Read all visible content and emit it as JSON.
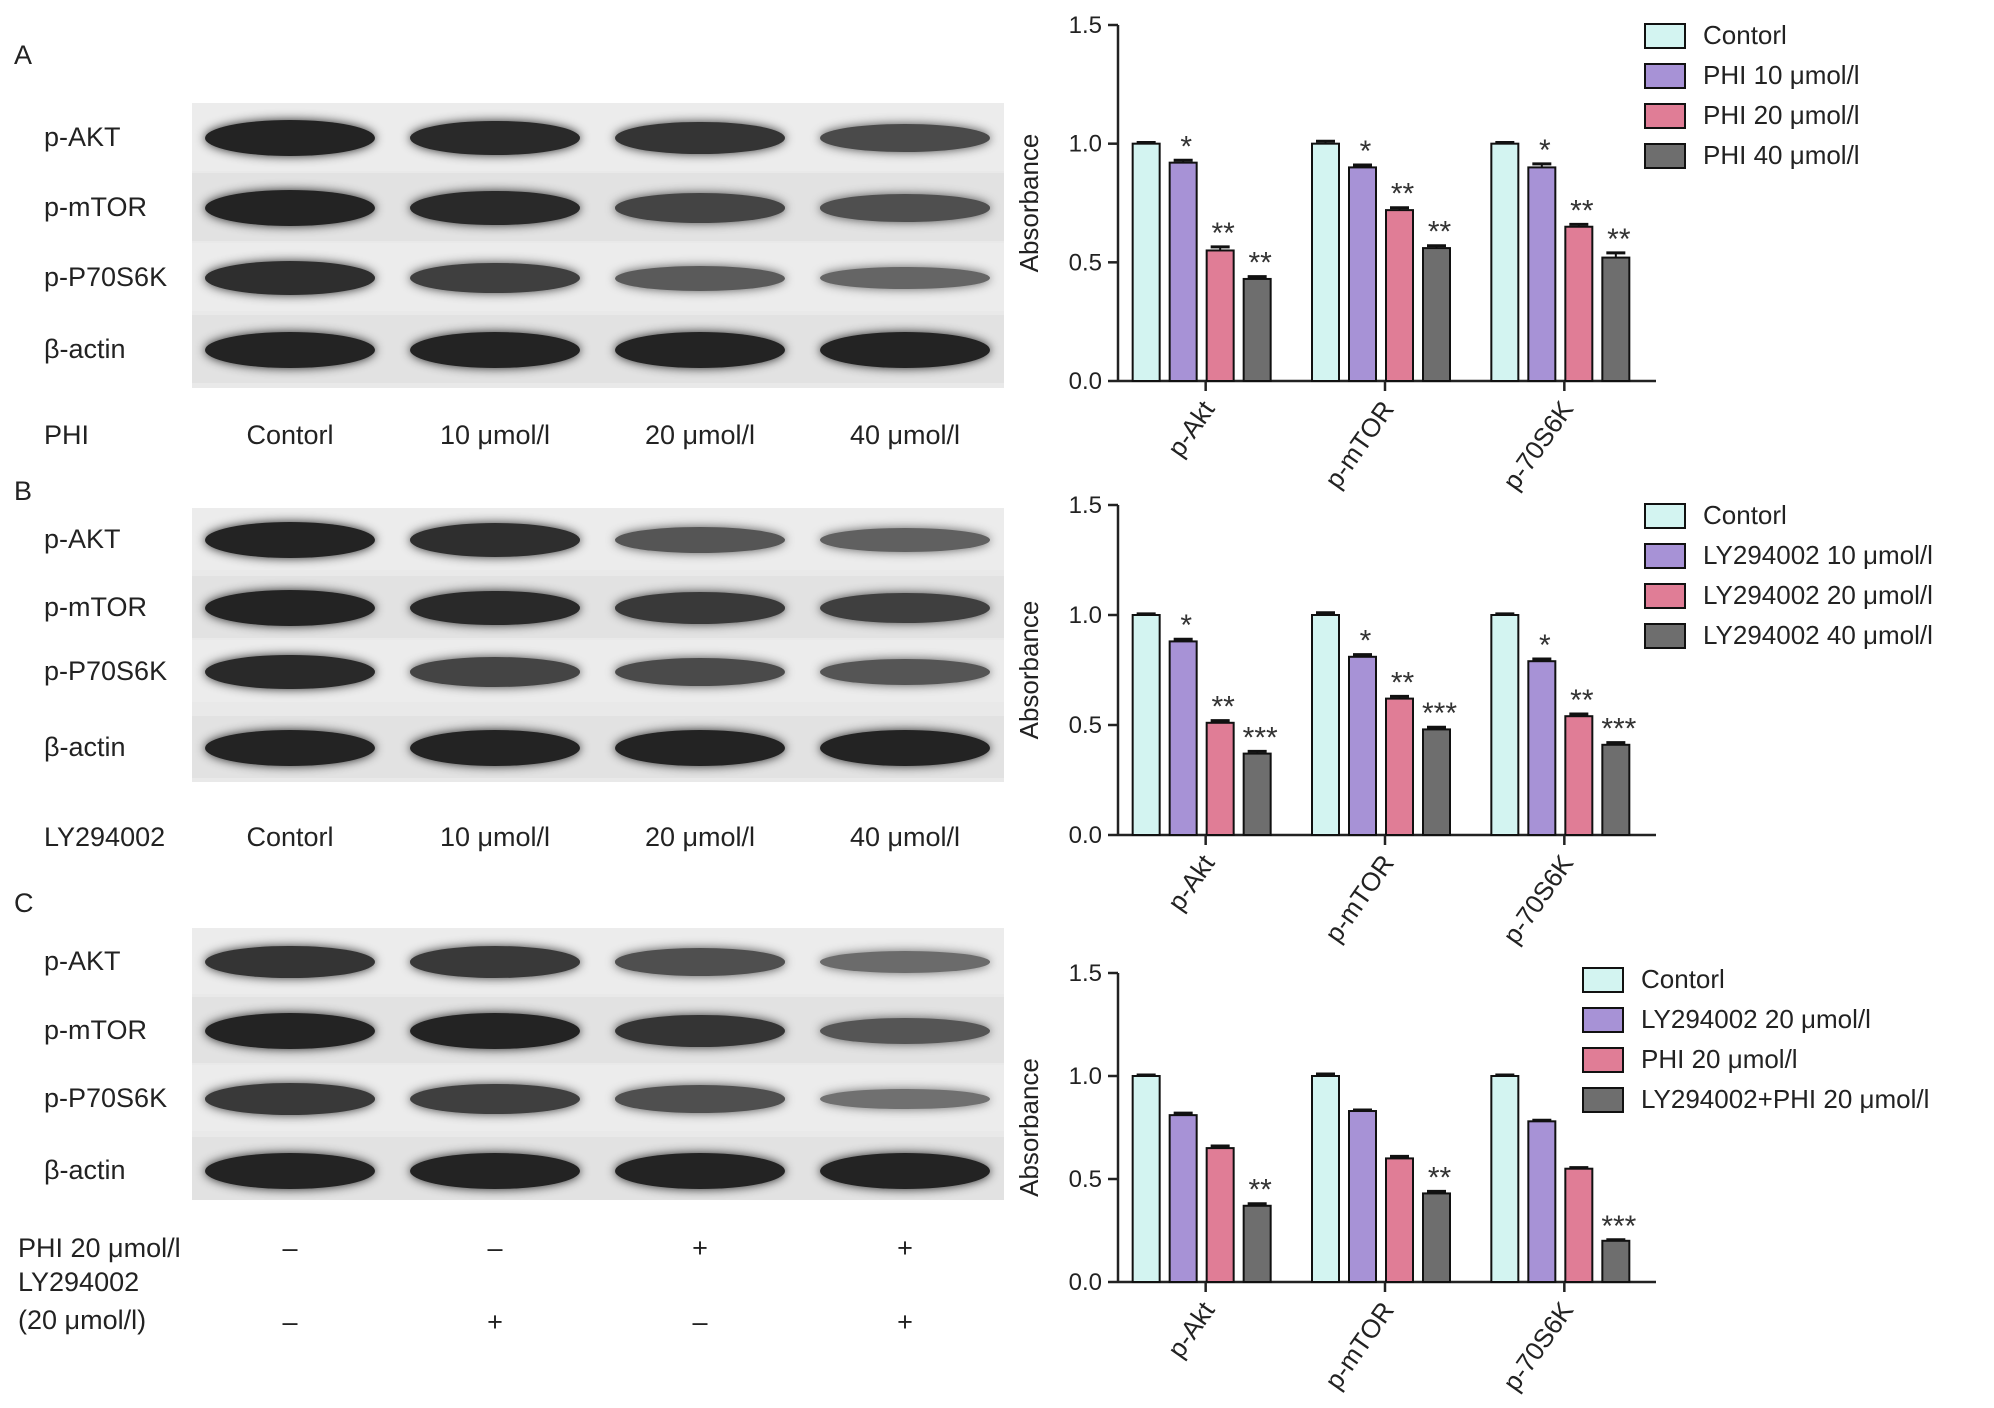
{
  "colors": {
    "Contorl": "#d3f4f1",
    "treatment_10": "#a792d6",
    "treatment_20": "#e07d96",
    "treatment_40": "#6e6e6e"
  },
  "panels": [
    {
      "letter": "A",
      "blot": {
        "rows": [
          "p-AKT",
          "p-mTOR",
          "p-P70S6K",
          "β-actin"
        ],
        "condition_label": "PHI",
        "lanes": [
          "Contorl",
          "10 μmol/l",
          "20 μmol/l",
          "40 μmol/l"
        ],
        "band_intensity": [
          [
            1.0,
            0.95,
            0.85,
            0.65
          ],
          [
            1.0,
            0.95,
            0.7,
            0.6
          ],
          [
            0.9,
            0.75,
            0.5,
            0.4
          ],
          [
            1.0,
            1.0,
            1.0,
            1.0
          ]
        ]
      },
      "legend": [
        "Contorl",
        "PHI 10 μmol/l",
        "PHI 20 μmol/l",
        "PHI 40 μmol/l"
      ]
    },
    {
      "letter": "B",
      "blot": {
        "rows": [
          "p-AKT",
          "p-mTOR",
          "p-P70S6K",
          "β-actin"
        ],
        "condition_label": "LY294002",
        "lanes": [
          "Contorl",
          "10 μmol/l",
          "20 μmol/l",
          "40 μmol/l"
        ],
        "band_intensity": [
          [
            1.0,
            0.9,
            0.55,
            0.45
          ],
          [
            1.0,
            0.95,
            0.8,
            0.75
          ],
          [
            0.95,
            0.7,
            0.65,
            0.55
          ],
          [
            1.0,
            1.0,
            1.0,
            1.0
          ]
        ]
      },
      "legend": [
        "Contorl",
        "LY294002 10 μmol/l",
        "LY294002 20 μmol/l",
        "LY294002 40 μmol/l"
      ]
    },
    {
      "letter": "C",
      "blot": {
        "rows": [
          "p-AKT",
          "p-mTOR",
          "p-P70S6K",
          "β-actin"
        ],
        "condition_rows": [
          {
            "label": "PHI 20 μmol/l",
            "values": [
              "–",
              "–",
              "+",
              "+"
            ]
          },
          {
            "label_lines": [
              "LY294002",
              "(20 μmol/l)"
            ],
            "values": [
              "–",
              "+",
              "–",
              "+"
            ]
          }
        ],
        "band_intensity": [
          [
            0.85,
            0.8,
            0.6,
            0.35
          ],
          [
            1.0,
            1.0,
            0.85,
            0.55
          ],
          [
            0.8,
            0.75,
            0.6,
            0.3
          ],
          [
            1.0,
            1.0,
            1.0,
            1.0
          ]
        ]
      },
      "legend": [
        "Contorl",
        "LY294002 20 μmol/l",
        "PHI 20 μmol/l",
        "LY294002+PHI 20 μmol/l"
      ]
    }
  ],
  "chart_data": [
    {
      "type": "bar",
      "categories": [
        "p-Akt",
        "p-mTOR",
        "p-70S6K"
      ],
      "ylabel": "Absorbance",
      "ylim": [
        0,
        1.5
      ],
      "yticks": [
        "0.0",
        "0.5",
        "1.0",
        "1.5"
      ],
      "series": [
        {
          "name": "Contorl",
          "values": [
            1.0,
            1.0,
            1.0
          ],
          "errors": [
            0.005,
            0.01,
            0.005
          ],
          "sig": [
            "",
            "",
            ""
          ]
        },
        {
          "name": "PHI 10 μmol/l",
          "values": [
            0.92,
            0.9,
            0.9
          ],
          "errors": [
            0.01,
            0.01,
            0.015
          ],
          "sig": [
            "*",
            "*",
            "*"
          ]
        },
        {
          "name": "PHI 20 μmol/l",
          "values": [
            0.55,
            0.72,
            0.65
          ],
          "errors": [
            0.015,
            0.01,
            0.01
          ],
          "sig": [
            "**",
            "**",
            "**"
          ]
        },
        {
          "name": "PHI 40 μmol/l",
          "values": [
            0.43,
            0.56,
            0.52
          ],
          "errors": [
            0.01,
            0.01,
            0.02
          ],
          "sig": [
            "**",
            "**",
            "**"
          ]
        }
      ],
      "legend_position": "top-right"
    },
    {
      "type": "bar",
      "categories": [
        "p-Akt",
        "p-mTOR",
        "p-70S6K"
      ],
      "ylabel": "Absorbance",
      "ylim": [
        0,
        1.5
      ],
      "yticks": [
        "0.0",
        "0.5",
        "1.0",
        "1.5"
      ],
      "series": [
        {
          "name": "Contorl",
          "values": [
            1.0,
            1.0,
            1.0
          ],
          "errors": [
            0.005,
            0.01,
            0.005
          ],
          "sig": [
            "",
            "",
            ""
          ]
        },
        {
          "name": "LY294002 10 μmol/l",
          "values": [
            0.88,
            0.81,
            0.79
          ],
          "errors": [
            0.01,
            0.01,
            0.01
          ],
          "sig": [
            "*",
            "*",
            "*"
          ]
        },
        {
          "name": "LY294002 20 μmol/l",
          "values": [
            0.51,
            0.62,
            0.54
          ],
          "errors": [
            0.01,
            0.01,
            0.01
          ],
          "sig": [
            "**",
            "**",
            "**"
          ]
        },
        {
          "name": "LY294002 40 μmol/l",
          "values": [
            0.37,
            0.48,
            0.41
          ],
          "errors": [
            0.01,
            0.01,
            0.01
          ],
          "sig": [
            "***",
            "***",
            "***"
          ]
        }
      ],
      "legend_position": "top-right"
    },
    {
      "type": "bar",
      "categories": [
        "p-Akt",
        "p-mTOR",
        "p-70S6K"
      ],
      "ylabel": "Absorbance",
      "ylim": [
        0,
        1.5
      ],
      "yticks": [
        "0.0",
        "0.5",
        "1.0",
        "1.5"
      ],
      "series": [
        {
          "name": "Contorl",
          "values": [
            1.0,
            1.0,
            1.0
          ],
          "errors": [
            0.005,
            0.01,
            0.005
          ],
          "sig": [
            "",
            "",
            ""
          ]
        },
        {
          "name": "LY294002 20 μmol/l",
          "values": [
            0.81,
            0.83,
            0.78
          ],
          "errors": [
            0.01,
            0.005,
            0.005
          ],
          "sig": [
            "",
            "",
            ""
          ]
        },
        {
          "name": "PHI 20 μmol/l",
          "values": [
            0.65,
            0.6,
            0.55
          ],
          "errors": [
            0.01,
            0.01,
            0.005
          ],
          "sig": [
            "",
            "",
            ""
          ]
        },
        {
          "name": "LY294002+PHI 20 μmol/l",
          "values": [
            0.37,
            0.43,
            0.2
          ],
          "errors": [
            0.01,
            0.01,
            0.005
          ],
          "sig": [
            "**",
            "**",
            "***"
          ]
        }
      ],
      "legend_position": "top-right"
    }
  ]
}
